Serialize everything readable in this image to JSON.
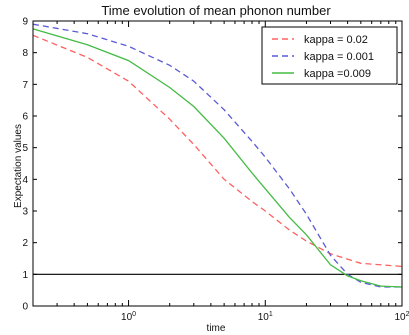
{
  "chart_data": {
    "type": "line",
    "title": "Time evolution of mean phonon number",
    "xlabel": "time",
    "ylabel": "Expectation values",
    "xscale": "log",
    "xlim": [
      0.2,
      100
    ],
    "ylim": [
      0,
      9
    ],
    "yticks": [
      0,
      1,
      2,
      3,
      4,
      5,
      6,
      7,
      8,
      9
    ],
    "xticks": [
      {
        "value": 1,
        "base": "10",
        "exp": "0"
      },
      {
        "value": 10,
        "base": "10",
        "exp": "1"
      },
      {
        "value": 100,
        "base": "10",
        "exp": "2"
      }
    ],
    "legend_position": "top-right",
    "grid": false,
    "series": [
      {
        "name": "kappa = 0.02",
        "color": "#ff6060",
        "style": "dashed",
        "points": [
          [
            0.2,
            8.55
          ],
          [
            0.5,
            7.85
          ],
          [
            1,
            7.1
          ],
          [
            2,
            5.9
          ],
          [
            3,
            5.1
          ],
          [
            5,
            4.0
          ],
          [
            8,
            3.3
          ],
          [
            10,
            3.0
          ],
          [
            15,
            2.4
          ],
          [
            20,
            2.05
          ],
          [
            30,
            1.65
          ],
          [
            50,
            1.35
          ],
          [
            100,
            1.25
          ]
        ]
      },
      {
        "name": "kappa = 0.001",
        "color": "#5a5ad6",
        "style": "dashed",
        "points": [
          [
            0.2,
            8.9
          ],
          [
            0.5,
            8.6
          ],
          [
            1,
            8.2
          ],
          [
            2,
            7.6
          ],
          [
            3,
            7.1
          ],
          [
            5,
            6.2
          ],
          [
            8,
            5.2
          ],
          [
            10,
            4.7
          ],
          [
            15,
            3.7
          ],
          [
            20,
            2.9
          ],
          [
            30,
            1.6
          ],
          [
            40,
            1.0
          ],
          [
            50,
            0.75
          ],
          [
            70,
            0.6
          ],
          [
            100,
            0.6
          ]
        ]
      },
      {
        "name": "kappa =0.009",
        "color": "#44bb44",
        "style": "solid",
        "points": [
          [
            0.2,
            8.75
          ],
          [
            0.5,
            8.25
          ],
          [
            1,
            7.75
          ],
          [
            2,
            6.9
          ],
          [
            3,
            6.3
          ],
          [
            5,
            5.3
          ],
          [
            8,
            4.2
          ],
          [
            10,
            3.7
          ],
          [
            15,
            2.8
          ],
          [
            20,
            2.25
          ],
          [
            30,
            1.3
          ],
          [
            40,
            0.95
          ],
          [
            50,
            0.8
          ],
          [
            70,
            0.63
          ],
          [
            100,
            0.6
          ]
        ]
      }
    ],
    "reference_line": {
      "y": 1,
      "color": "#000000"
    }
  }
}
